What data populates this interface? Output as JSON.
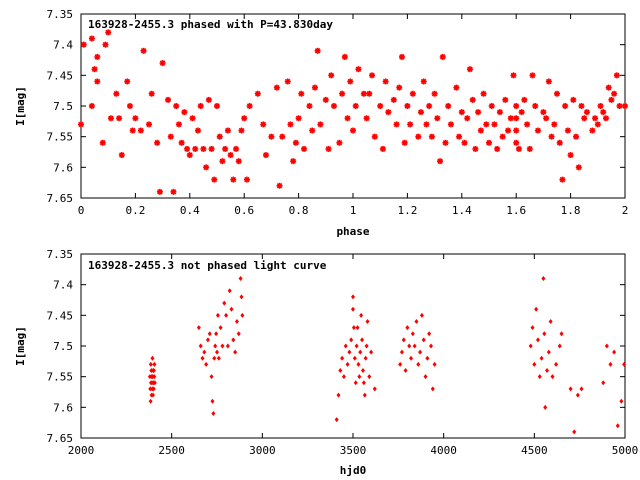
{
  "colors": {
    "points": "#ff0000",
    "axes": "#000000",
    "background": "#ffffff"
  },
  "chart_data": [
    {
      "type": "scatter",
      "title": "163928-2455.3 phased with P=43.830day",
      "xlabel": "phase",
      "ylabel": "I[mag]",
      "xlim": [
        0,
        2
      ],
      "ylim": [
        7.65,
        7.35
      ],
      "y_inverted": true,
      "xticks": [
        "0",
        "0.2",
        "0.4",
        "0.6",
        "0.8",
        "1",
        "1.2",
        "1.4",
        "1.6",
        "1.8",
        "2"
      ],
      "yticks": [
        "7.35",
        "7.4",
        "7.45",
        "7.5",
        "7.55",
        "7.6",
        "7.65"
      ],
      "grid": false,
      "marker": "star",
      "points": [
        [
          0.0,
          7.53
        ],
        [
          0.01,
          7.4
        ],
        [
          0.04,
          7.39
        ],
        [
          0.04,
          7.5
        ],
        [
          0.05,
          7.44
        ],
        [
          0.06,
          7.42
        ],
        [
          0.06,
          7.46
        ],
        [
          0.08,
          7.56
        ],
        [
          0.09,
          7.4
        ],
        [
          0.1,
          7.38
        ],
        [
          0.11,
          7.52
        ],
        [
          0.13,
          7.48
        ],
        [
          0.14,
          7.52
        ],
        [
          0.15,
          7.58
        ],
        [
          0.17,
          7.46
        ],
        [
          0.18,
          7.5
        ],
        [
          0.19,
          7.54
        ],
        [
          0.2,
          7.52
        ],
        [
          0.22,
          7.54
        ],
        [
          0.23,
          7.41
        ],
        [
          0.25,
          7.53
        ],
        [
          0.26,
          7.48
        ],
        [
          0.28,
          7.56
        ],
        [
          0.29,
          7.64
        ],
        [
          0.3,
          7.43
        ],
        [
          0.32,
          7.49
        ],
        [
          0.33,
          7.55
        ],
        [
          0.34,
          7.64
        ],
        [
          0.35,
          7.5
        ],
        [
          0.36,
          7.53
        ],
        [
          0.37,
          7.56
        ],
        [
          0.38,
          7.51
        ],
        [
          0.39,
          7.57
        ],
        [
          0.4,
          7.58
        ],
        [
          0.41,
          7.52
        ],
        [
          0.42,
          7.57
        ],
        [
          0.43,
          7.54
        ],
        [
          0.44,
          7.5
        ],
        [
          0.45,
          7.57
        ],
        [
          0.46,
          7.6
        ],
        [
          0.47,
          7.49
        ],
        [
          0.48,
          7.57
        ],
        [
          0.49,
          7.62
        ],
        [
          0.5,
          7.5
        ],
        [
          0.51,
          7.55
        ],
        [
          0.52,
          7.59
        ],
        [
          0.53,
          7.57
        ],
        [
          0.54,
          7.54
        ],
        [
          0.55,
          7.58
        ],
        [
          0.56,
          7.62
        ],
        [
          0.57,
          7.57
        ],
        [
          0.58,
          7.59
        ],
        [
          0.59,
          7.54
        ],
        [
          0.6,
          7.52
        ],
        [
          0.61,
          7.62
        ],
        [
          0.62,
          7.5
        ],
        [
          0.65,
          7.48
        ],
        [
          0.67,
          7.53
        ],
        [
          0.68,
          7.58
        ],
        [
          0.7,
          7.55
        ],
        [
          0.72,
          7.47
        ],
        [
          0.73,
          7.63
        ],
        [
          0.74,
          7.55
        ],
        [
          0.76,
          7.46
        ],
        [
          0.77,
          7.53
        ],
        [
          0.78,
          7.59
        ],
        [
          0.79,
          7.56
        ],
        [
          0.8,
          7.52
        ],
        [
          0.81,
          7.48
        ],
        [
          0.82,
          7.57
        ],
        [
          0.84,
          7.5
        ],
        [
          0.85,
          7.54
        ],
        [
          0.86,
          7.47
        ],
        [
          0.87,
          7.41
        ],
        [
          0.88,
          7.53
        ],
        [
          0.9,
          7.49
        ],
        [
          0.91,
          7.57
        ],
        [
          0.92,
          7.45
        ],
        [
          0.93,
          7.5
        ],
        [
          0.95,
          7.56
        ],
        [
          0.96,
          7.48
        ],
        [
          0.97,
          7.42
        ],
        [
          0.98,
          7.52
        ],
        [
          0.99,
          7.46
        ],
        [
          1.0,
          7.54
        ],
        [
          1.01,
          7.5
        ],
        [
          1.02,
          7.44
        ],
        [
          1.04,
          7.48
        ],
        [
          1.05,
          7.52
        ],
        [
          1.06,
          7.48
        ],
        [
          1.07,
          7.45
        ],
        [
          1.08,
          7.55
        ],
        [
          1.1,
          7.5
        ],
        [
          1.11,
          7.57
        ],
        [
          1.12,
          7.46
        ],
        [
          1.13,
          7.51
        ],
        [
          1.15,
          7.49
        ],
        [
          1.16,
          7.53
        ],
        [
          1.17,
          7.47
        ],
        [
          1.18,
          7.42
        ],
        [
          1.19,
          7.56
        ],
        [
          1.2,
          7.5
        ],
        [
          1.21,
          7.53
        ],
        [
          1.22,
          7.48
        ],
        [
          1.24,
          7.55
        ],
        [
          1.25,
          7.51
        ],
        [
          1.26,
          7.46
        ],
        [
          1.27,
          7.53
        ],
        [
          1.28,
          7.5
        ],
        [
          1.29,
          7.55
        ],
        [
          1.3,
          7.48
        ],
        [
          1.31,
          7.52
        ],
        [
          1.32,
          7.59
        ],
        [
          1.33,
          7.42
        ],
        [
          1.34,
          7.56
        ],
        [
          1.35,
          7.5
        ],
        [
          1.36,
          7.53
        ],
        [
          1.38,
          7.47
        ],
        [
          1.39,
          7.55
        ],
        [
          1.4,
          7.51
        ],
        [
          1.41,
          7.56
        ],
        [
          1.42,
          7.52
        ],
        [
          1.43,
          7.44
        ],
        [
          1.44,
          7.49
        ],
        [
          1.45,
          7.57
        ],
        [
          1.46,
          7.51
        ],
        [
          1.47,
          7.54
        ],
        [
          1.48,
          7.48
        ],
        [
          1.49,
          7.53
        ],
        [
          1.5,
          7.56
        ],
        [
          1.51,
          7.5
        ],
        [
          1.52,
          7.53
        ],
        [
          1.53,
          7.57
        ],
        [
          1.54,
          7.51
        ],
        [
          1.55,
          7.55
        ],
        [
          1.56,
          7.49
        ],
        [
          1.57,
          7.54
        ],
        [
          1.58,
          7.52
        ],
        [
          1.59,
          7.45
        ],
        [
          1.6,
          7.5
        ],
        [
          1.6,
          7.52
        ],
        [
          1.6,
          7.54
        ],
        [
          1.6,
          7.56
        ],
        [
          1.61,
          7.57
        ],
        [
          1.62,
          7.51
        ],
        [
          1.63,
          7.49
        ],
        [
          1.64,
          7.53
        ],
        [
          1.65,
          7.57
        ],
        [
          1.66,
          7.45
        ],
        [
          1.67,
          7.5
        ],
        [
          1.68,
          7.54
        ],
        [
          1.7,
          7.51
        ],
        [
          1.71,
          7.52
        ],
        [
          1.72,
          7.46
        ],
        [
          1.73,
          7.55
        ],
        [
          1.74,
          7.53
        ],
        [
          1.75,
          7.48
        ],
        [
          1.76,
          7.56
        ],
        [
          1.77,
          7.62
        ],
        [
          1.78,
          7.5
        ],
        [
          1.79,
          7.54
        ],
        [
          1.8,
          7.58
        ],
        [
          1.81,
          7.49
        ],
        [
          1.82,
          7.55
        ],
        [
          1.83,
          7.6
        ],
        [
          1.84,
          7.5
        ],
        [
          1.85,
          7.52
        ],
        [
          1.86,
          7.51
        ],
        [
          1.88,
          7.54
        ],
        [
          1.89,
          7.52
        ],
        [
          1.9,
          7.53
        ],
        [
          1.91,
          7.5
        ],
        [
          1.92,
          7.51
        ],
        [
          1.93,
          7.52
        ],
        [
          1.94,
          7.47
        ],
        [
          1.95,
          7.49
        ],
        [
          1.96,
          7.48
        ],
        [
          1.97,
          7.45
        ],
        [
          1.98,
          7.5
        ],
        [
          2.0,
          7.5
        ]
      ]
    },
    {
      "type": "scatter",
      "title": "163928-2455.3 not phased light curve",
      "xlabel": "hjd0",
      "ylabel": "I[mag]",
      "xlim": [
        2000,
        5000
      ],
      "ylim": [
        7.65,
        7.35
      ],
      "y_inverted": true,
      "xticks": [
        "2000",
        "2500",
        "3000",
        "3500",
        "4000",
        "4500",
        "5000"
      ],
      "yticks": [
        "7.35",
        "7.4",
        "7.45",
        "7.5",
        "7.55",
        "7.6",
        "7.65"
      ],
      "grid": false,
      "marker": "diamond",
      "points": [
        [
          2380,
          7.55
        ],
        [
          2382,
          7.57
        ],
        [
          2384,
          7.59
        ],
        [
          2385,
          7.53
        ],
        [
          2386,
          7.56
        ],
        [
          2388,
          7.54
        ],
        [
          2389,
          7.58
        ],
        [
          2390,
          7.55
        ],
        [
          2392,
          7.56
        ],
        [
          2393,
          7.57
        ],
        [
          2394,
          7.52
        ],
        [
          2395,
          7.55
        ],
        [
          2397,
          7.58
        ],
        [
          2398,
          7.54
        ],
        [
          2400,
          7.56
        ],
        [
          2401,
          7.57
        ],
        [
          2402,
          7.54
        ],
        [
          2404,
          7.55
        ],
        [
          2405,
          7.53
        ],
        [
          2407,
          7.56
        ],
        [
          2650,
          7.47
        ],
        [
          2660,
          7.5
        ],
        [
          2670,
          7.52
        ],
        [
          2680,
          7.51
        ],
        [
          2690,
          7.53
        ],
        [
          2700,
          7.49
        ],
        [
          2710,
          7.48
        ],
        [
          2720,
          7.55
        ],
        [
          2725,
          7.59
        ],
        [
          2730,
          7.61
        ],
        [
          2735,
          7.52
        ],
        [
          2740,
          7.5
        ],
        [
          2745,
          7.48
        ],
        [
          2750,
          7.51
        ],
        [
          2755,
          7.45
        ],
        [
          2760,
          7.52
        ],
        [
          2770,
          7.47
        ],
        [
          2780,
          7.5
        ],
        [
          2790,
          7.43
        ],
        [
          2800,
          7.45
        ],
        [
          2810,
          7.5
        ],
        [
          2820,
          7.41
        ],
        [
          2830,
          7.44
        ],
        [
          2840,
          7.49
        ],
        [
          2850,
          7.51
        ],
        [
          2860,
          7.46
        ],
        [
          2870,
          7.48
        ],
        [
          2880,
          7.39
        ],
        [
          2885,
          7.42
        ],
        [
          2890,
          7.45
        ],
        [
          3410,
          7.62
        ],
        [
          3420,
          7.58
        ],
        [
          3430,
          7.54
        ],
        [
          3440,
          7.52
        ],
        [
          3450,
          7.55
        ],
        [
          3460,
          7.5
        ],
        [
          3470,
          7.53
        ],
        [
          3480,
          7.51
        ],
        [
          3490,
          7.49
        ],
        [
          3500,
          7.44
        ],
        [
          3505,
          7.47
        ],
        [
          3510,
          7.52
        ],
        [
          3515,
          7.56
        ],
        [
          3520,
          7.5
        ],
        [
          3525,
          7.47
        ],
        [
          3530,
          7.53
        ],
        [
          3535,
          7.55
        ],
        [
          3540,
          7.51
        ],
        [
          3545,
          7.45
        ],
        [
          3550,
          7.49
        ],
        [
          3555,
          7.54
        ],
        [
          3560,
          7.56
        ],
        [
          3565,
          7.58
        ],
        [
          3570,
          7.52
        ],
        [
          3575,
          7.5
        ],
        [
          3580,
          7.46
        ],
        [
          3590,
          7.55
        ],
        [
          3600,
          7.51
        ],
        [
          3620,
          7.57
        ],
        [
          3500,
          7.42
        ],
        [
          3760,
          7.53
        ],
        [
          3770,
          7.51
        ],
        [
          3780,
          7.49
        ],
        [
          3790,
          7.54
        ],
        [
          3800,
          7.47
        ],
        [
          3810,
          7.5
        ],
        [
          3820,
          7.52
        ],
        [
          3830,
          7.48
        ],
        [
          3840,
          7.5
        ],
        [
          3850,
          7.46
        ],
        [
          3860,
          7.53
        ],
        [
          3870,
          7.51
        ],
        [
          3880,
          7.45
        ],
        [
          3890,
          7.49
        ],
        [
          3900,
          7.55
        ],
        [
          3910,
          7.52
        ],
        [
          3920,
          7.48
        ],
        [
          3930,
          7.5
        ],
        [
          3940,
          7.57
        ],
        [
          3950,
          7.53
        ],
        [
          4480,
          7.5
        ],
        [
          4490,
          7.47
        ],
        [
          4500,
          7.53
        ],
        [
          4510,
          7.44
        ],
        [
          4520,
          7.49
        ],
        [
          4530,
          7.55
        ],
        [
          4540,
          7.52
        ],
        [
          4550,
          7.39
        ],
        [
          4555,
          7.48
        ],
        [
          4560,
          7.6
        ],
        [
          4570,
          7.54
        ],
        [
          4580,
          7.51
        ],
        [
          4590,
          7.46
        ],
        [
          4600,
          7.55
        ],
        [
          4620,
          7.53
        ],
        [
          4640,
          7.5
        ],
        [
          4650,
          7.48
        ],
        [
          4700,
          7.57
        ],
        [
          4720,
          7.64
        ],
        [
          4740,
          7.58
        ],
        [
          4760,
          7.57
        ],
        [
          4880,
          7.56
        ],
        [
          4900,
          7.5
        ],
        [
          4920,
          7.53
        ],
        [
          4940,
          7.51
        ],
        [
          4960,
          7.63
        ],
        [
          4980,
          7.59
        ],
        [
          4995,
          7.53
        ]
      ]
    }
  ]
}
